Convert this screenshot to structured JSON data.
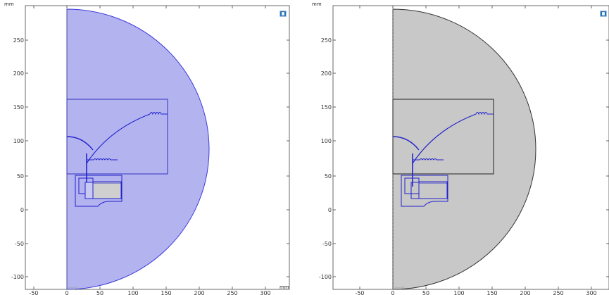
{
  "units": {
    "x": "mm",
    "y": "mm"
  },
  "y_ticks": [
    "250",
    "200",
    "150",
    "100",
    "50",
    "0",
    "-50",
    "-100"
  ],
  "x_ticks": [
    "-50",
    "0",
    "50",
    "100",
    "150",
    "200",
    "250",
    "300"
  ],
  "axis_marker": "r=0",
  "panes": [
    {
      "name": "left",
      "fill_color": "#b3b3f0",
      "outline_color": "#3b3bdb",
      "showing_x_unit": true
    },
    {
      "name": "right",
      "fill_color": "#c8c8c8",
      "outline_color": "#333333",
      "showing_x_unit": false
    }
  ],
  "view_icon": "view-toolbar-icon"
}
